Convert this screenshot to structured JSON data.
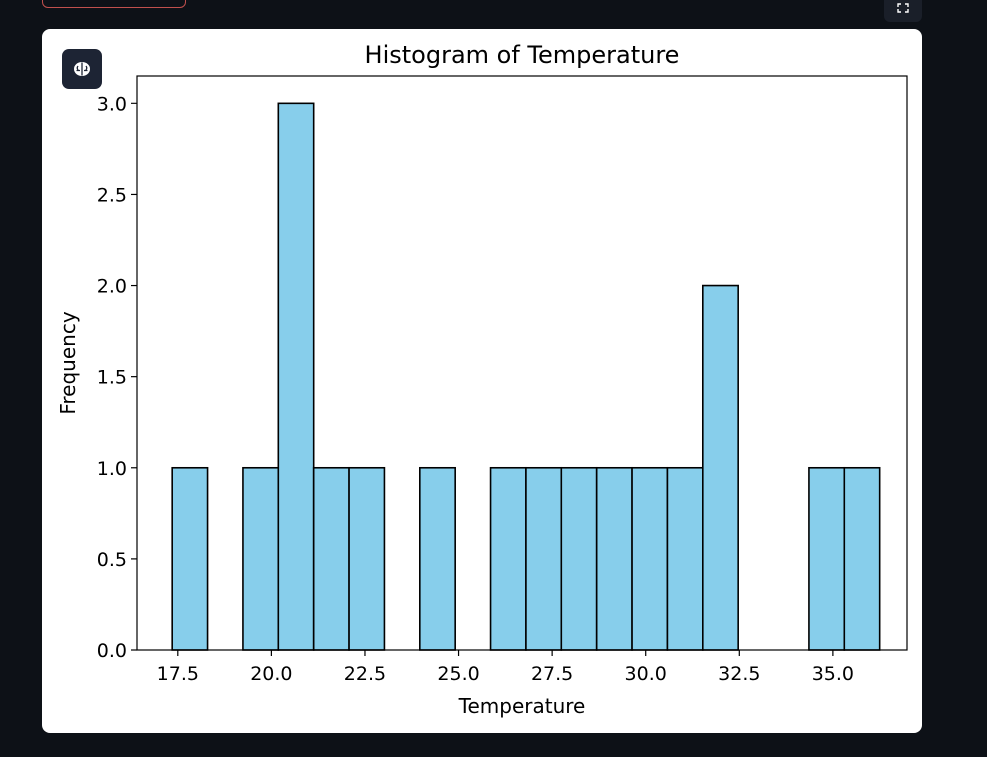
{
  "ui": {
    "top_button": {
      "color": "#c0504d"
    },
    "expand_button": {
      "icon": "expand-icon"
    },
    "assistant_button": {
      "icon": "brain-icon"
    }
  },
  "chart_data": {
    "type": "bar",
    "title": "Histogram of Temperature",
    "xlabel": "Temperature",
    "ylabel": "Frequency",
    "bar_color": "#87ceeb",
    "edge_color": "#000000",
    "xlim": [
      16.41,
      36.98
    ],
    "ylim": [
      0,
      3.15
    ],
    "xticks": [
      17.5,
      20.0,
      22.5,
      25.0,
      27.5,
      30.0,
      32.5,
      35.0
    ],
    "xtick_labels": [
      "17.5",
      "20.0",
      "22.5",
      "25.0",
      "27.5",
      "30.0",
      "32.5",
      "35.0"
    ],
    "yticks": [
      0,
      0.5,
      1.0,
      1.5,
      2.0,
      2.5,
      3.0
    ],
    "ytick_labels": [
      "0.0",
      "0.5",
      "1.0",
      "1.5",
      "2.0",
      "2.5",
      "3.0"
    ],
    "bin_start": 17.35,
    "bin_width": 0.945,
    "counts": [
      1,
      0,
      1,
      3,
      1,
      1,
      0,
      1,
      0,
      1,
      1,
      1,
      1,
      1,
      1,
      2,
      0,
      0,
      1,
      1
    ],
    "grid": false,
    "legend": "none"
  }
}
